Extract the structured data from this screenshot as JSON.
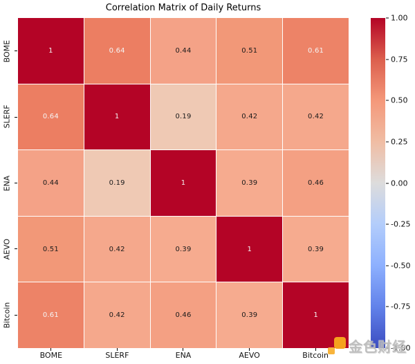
{
  "title": "Correlation Matrix of Daily Returns",
  "chart_data": {
    "type": "heatmap",
    "categories": [
      "BOME",
      "SLERF",
      "ENA",
      "AEVO",
      "Bitcoin"
    ],
    "matrix": [
      [
        1,
        0.64,
        0.44,
        0.51,
        0.61
      ],
      [
        0.64,
        1,
        0.19,
        0.42,
        0.42
      ],
      [
        0.44,
        0.19,
        1,
        0.39,
        0.46
      ],
      [
        0.51,
        0.42,
        0.39,
        1,
        0.39
      ],
      [
        0.61,
        0.42,
        0.46,
        0.39,
        1
      ]
    ],
    "colormap": "coolwarm",
    "vmin": -1,
    "vmax": 1,
    "annotations_on": true,
    "grid_line_color": "#ffffff",
    "colorbar_position": "right",
    "colorbar_ticks": [
      "1.00",
      "0.75",
      "0.50",
      "0.25",
      "0.00",
      "-0.25",
      "-0.50",
      "-0.75",
      "-1.00"
    ],
    "colorbar_gradient_stops": [
      {
        "pos": 0,
        "color": "#b40426"
      },
      {
        "pos": 12.5,
        "color": "#dc5f4d"
      },
      {
        "pos": 25,
        "color": "#f4987a"
      },
      {
        "pos": 37.5,
        "color": "#f0bda4"
      },
      {
        "pos": 50,
        "color": "#dddcdc"
      },
      {
        "pos": 62.5,
        "color": "#b3cdfb"
      },
      {
        "pos": 75,
        "color": "#8db0fe"
      },
      {
        "pos": 87.5,
        "color": "#6282ea"
      },
      {
        "pos": 100,
        "color": "#3b4cc0"
      }
    ],
    "value_colors": {
      "1": "#b40426",
      "0.64": "#ec7e62",
      "0.61": "#ed8367",
      "0.51": "#f29878",
      "0.46": "#f4a083",
      "0.44": "#f4a287",
      "0.42": "#f5a88c",
      "0.39": "#f6ab8f",
      "0.19": "#efc9b4"
    },
    "text_light_threshold": 0.6
  },
  "colors": {
    "background": "#ffffff",
    "annot_dark": "#1a1a1a",
    "annot_light": "#f5f5f5",
    "tick": "#000000",
    "watermark_logo": "#f5a11e",
    "watermark_logo_light": "#f8b43c",
    "watermark_text_color": "#969696"
  },
  "watermark": {
    "text": "金色财经"
  }
}
